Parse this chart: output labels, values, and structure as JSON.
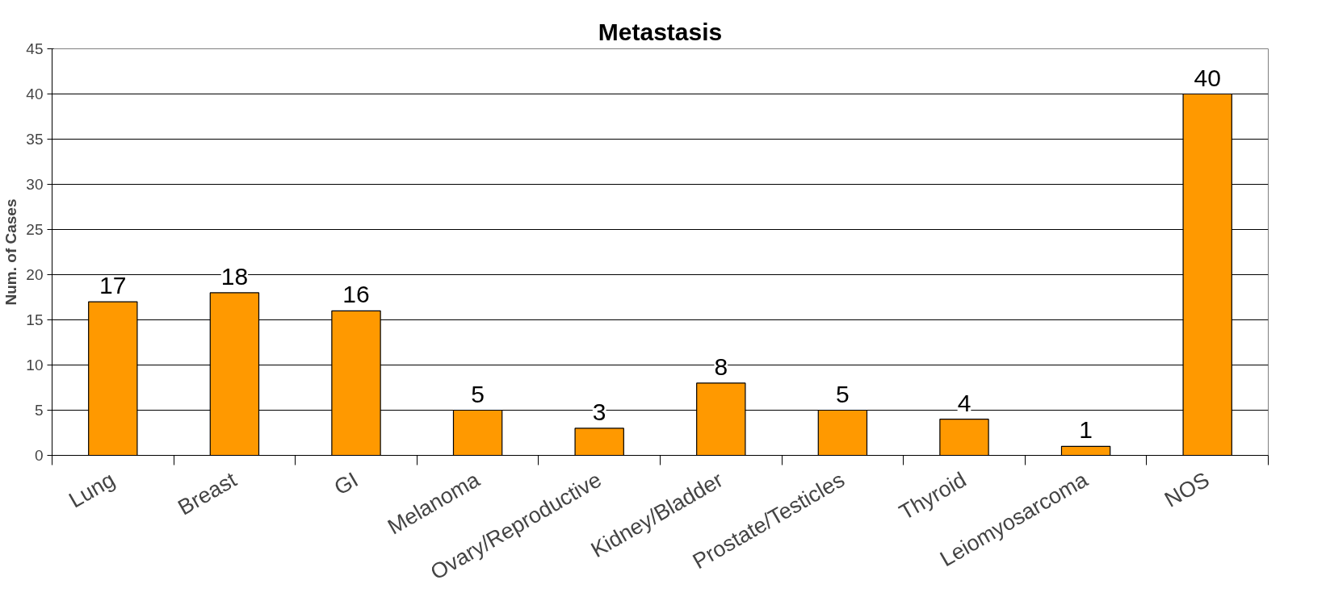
{
  "chart_data": {
    "type": "bar",
    "title": "Metastasis",
    "ylabel": "Num. of Cases",
    "categories": [
      "Lung",
      "Breast",
      "GI",
      "Melanoma",
      "Ovary/Reproductive",
      "Kidney/Bladder",
      "Prostate/Testicles",
      "Thyroid",
      "Leiomyosarcoma",
      "NOS"
    ],
    "values": [
      17,
      18,
      16,
      5,
      3,
      8,
      5,
      4,
      1,
      40
    ],
    "color": "#ff9900",
    "ylim": [
      0,
      45
    ],
    "yticks": [
      0,
      5,
      10,
      15,
      20,
      25,
      30,
      35,
      40,
      45
    ],
    "grid": "y",
    "data_labels": true
  }
}
